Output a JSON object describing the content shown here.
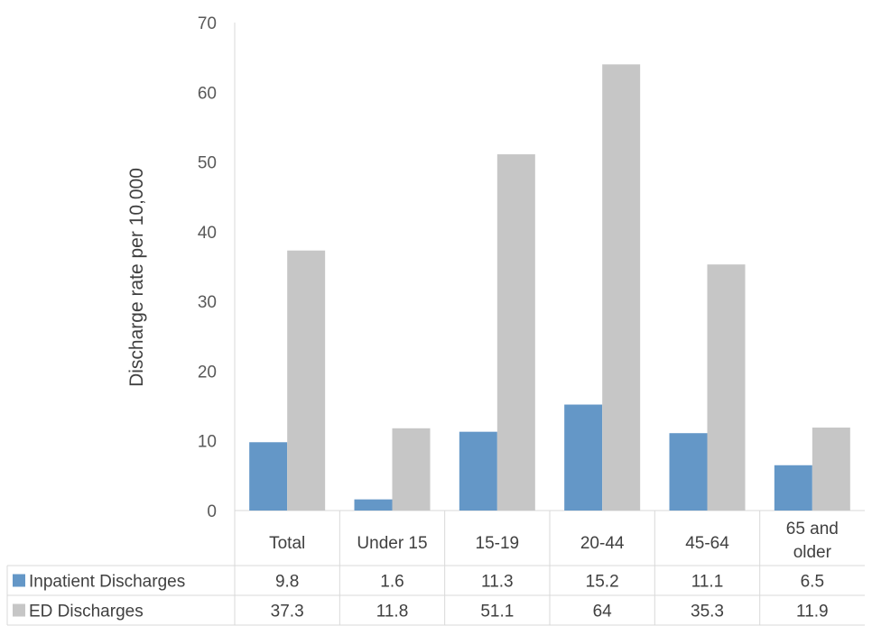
{
  "chart_data": {
    "type": "bar",
    "title": "",
    "xlabel": "",
    "ylabel": "Discharge rate per 10,000",
    "ylim": [
      0,
      70
    ],
    "yticks": [
      0,
      10,
      20,
      30,
      40,
      50,
      60,
      70
    ],
    "categories": [
      "Total",
      "Under 15",
      "15-19",
      "20-44",
      "45-64",
      "65 and older"
    ],
    "category_lines": [
      [
        "Total"
      ],
      [
        "Under 15"
      ],
      [
        "15-19"
      ],
      [
        "20-44"
      ],
      [
        "45-64"
      ],
      [
        "65 and",
        "older"
      ]
    ],
    "series": [
      {
        "name": "Inpatient Discharges",
        "values": [
          9.8,
          1.6,
          11.3,
          15.2,
          11.1,
          6.5
        ],
        "color": "#6497c7"
      },
      {
        "name": "ED Discharges",
        "values": [
          37.3,
          11.8,
          51.1,
          64,
          35.3,
          11.9
        ],
        "color": "#c6c6c6"
      }
    ],
    "grid": false,
    "legend": "data table below chart"
  }
}
